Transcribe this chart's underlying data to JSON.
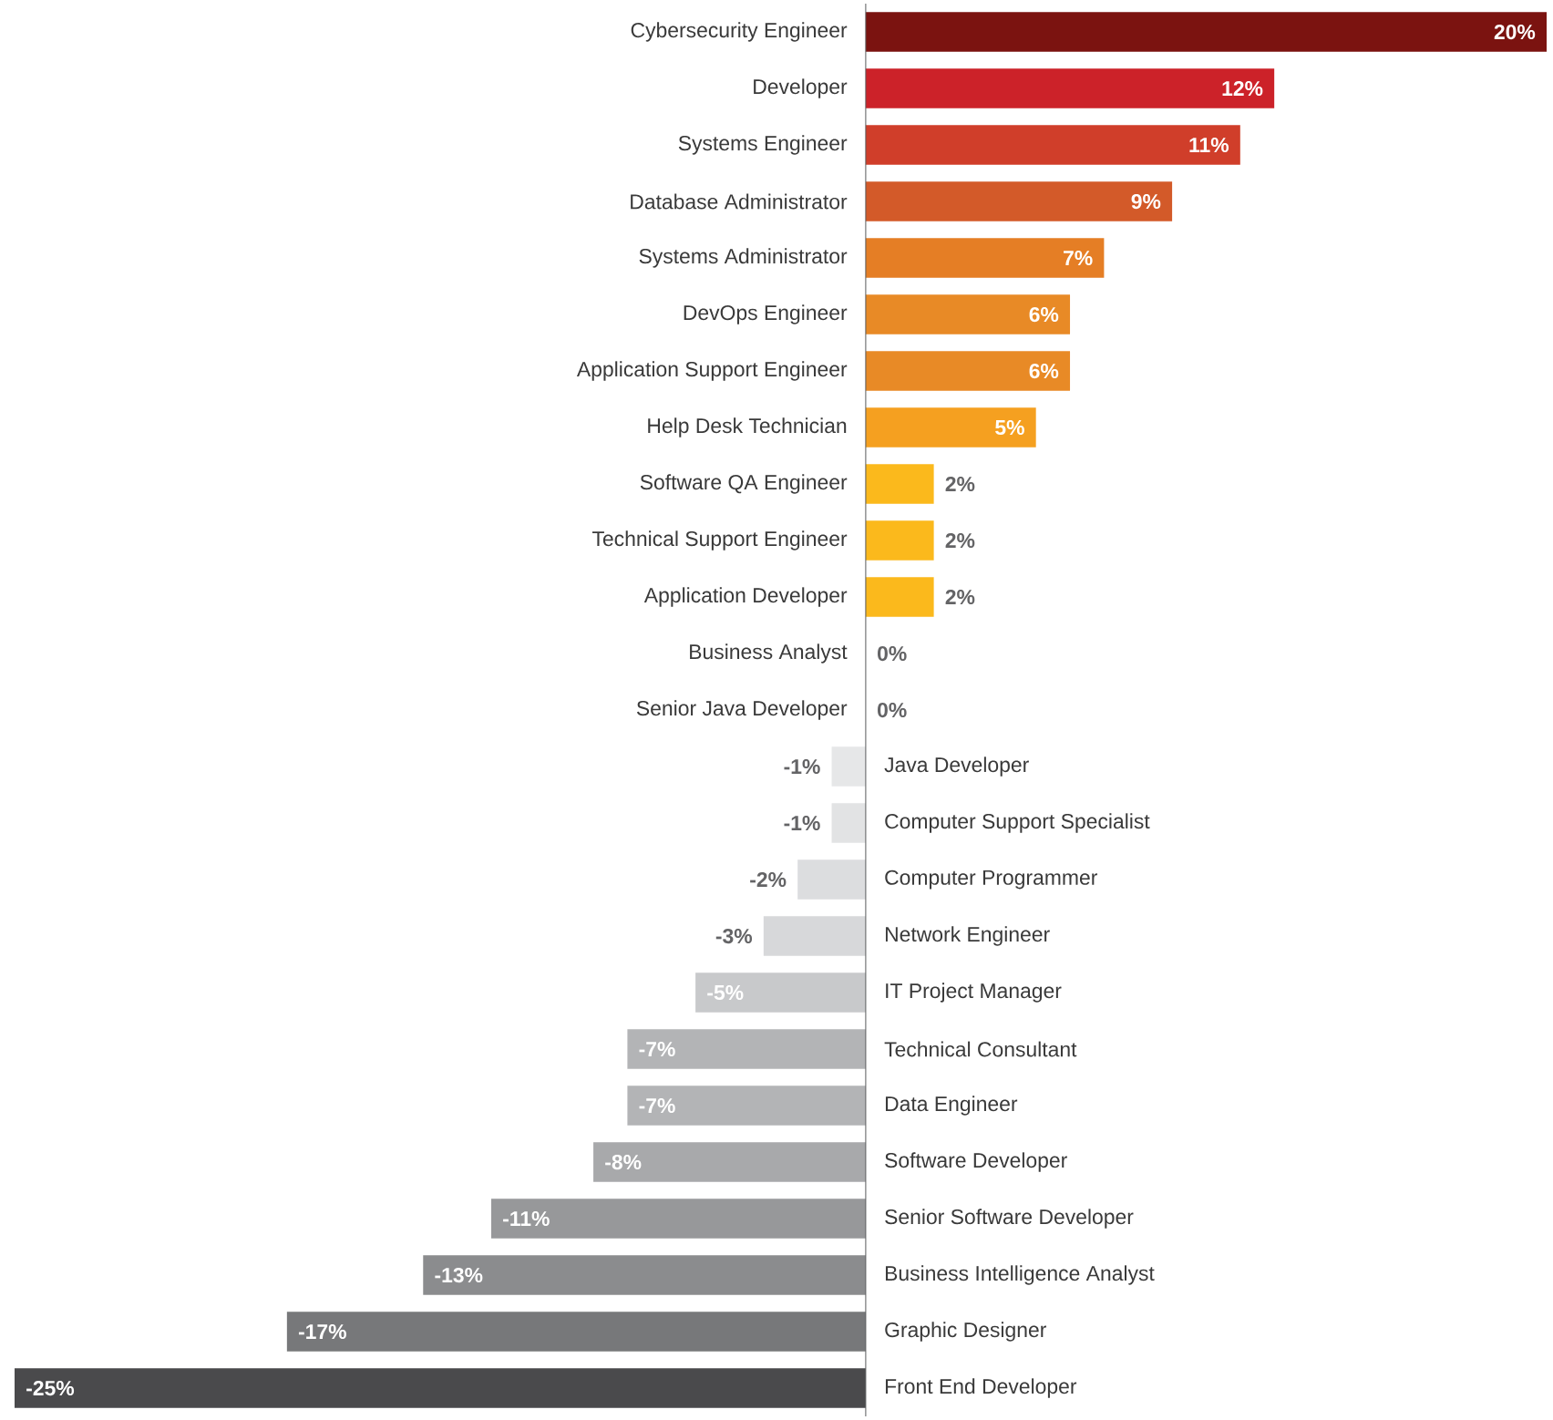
{
  "chart_data": {
    "type": "bar",
    "orientation": "horizontal",
    "tick_labels": "y",
    "categories": [
      "Cybersecurity Engineer",
      "Developer",
      "Systems Engineer",
      "Database Administrator",
      "Systems Administrator",
      "DevOps Engineer",
      "Application Support Engineer",
      "Help Desk Technician",
      "Software QA Engineer",
      "Technical Support Engineer",
      "Application Developer",
      "Business Analyst",
      "Senior Java Developer",
      "Java Developer",
      "Computer Support Specialist",
      "Computer Programmer",
      "Network Engineer",
      "IT Project Manager",
      "Technical Consultant",
      "Data Engineer",
      "Software Developer",
      "Senior Software Developer",
      "Business Intelligence Analyst",
      "Graphic Designer",
      "Front End Developer"
    ],
    "values": [
      20,
      12,
      11,
      9,
      7,
      6,
      6,
      5,
      2,
      2,
      2,
      0,
      0,
      -1,
      -1,
      -2,
      -3,
      -5,
      -7,
      -7,
      -8,
      -11,
      -13,
      -17,
      -25
    ],
    "value_labels": [
      "20%",
      "12%",
      "11%",
      "9%",
      "7%",
      "6%",
      "6%",
      "5%",
      "2%",
      "2%",
      "2%",
      "0%",
      "0%",
      "-1%",
      "-1%",
      "-2%",
      "-3%",
      "-5%",
      "-7%",
      "-7%",
      "-8%",
      "-11%",
      "-13%",
      "-17%",
      "-25%"
    ],
    "colors": [
      "#7b1310",
      "#cc2229",
      "#d03e2a",
      "#d35a29",
      "#e57e25",
      "#e88a26",
      "#e88a26",
      "#f5a020",
      "#fbb91c",
      "#fbb91c",
      "#fbb91c",
      "#fbb91c",
      "#fbb91c",
      "#e6e7e8",
      "#e2e3e4",
      "#dcdddf",
      "#d7d8da",
      "#c8c9cb",
      "#b3b4b6",
      "#b3b4b6",
      "#a8a9ab",
      "#97989a",
      "#8b8c8e",
      "#77787a",
      "#4a4a4c"
    ]
  }
}
